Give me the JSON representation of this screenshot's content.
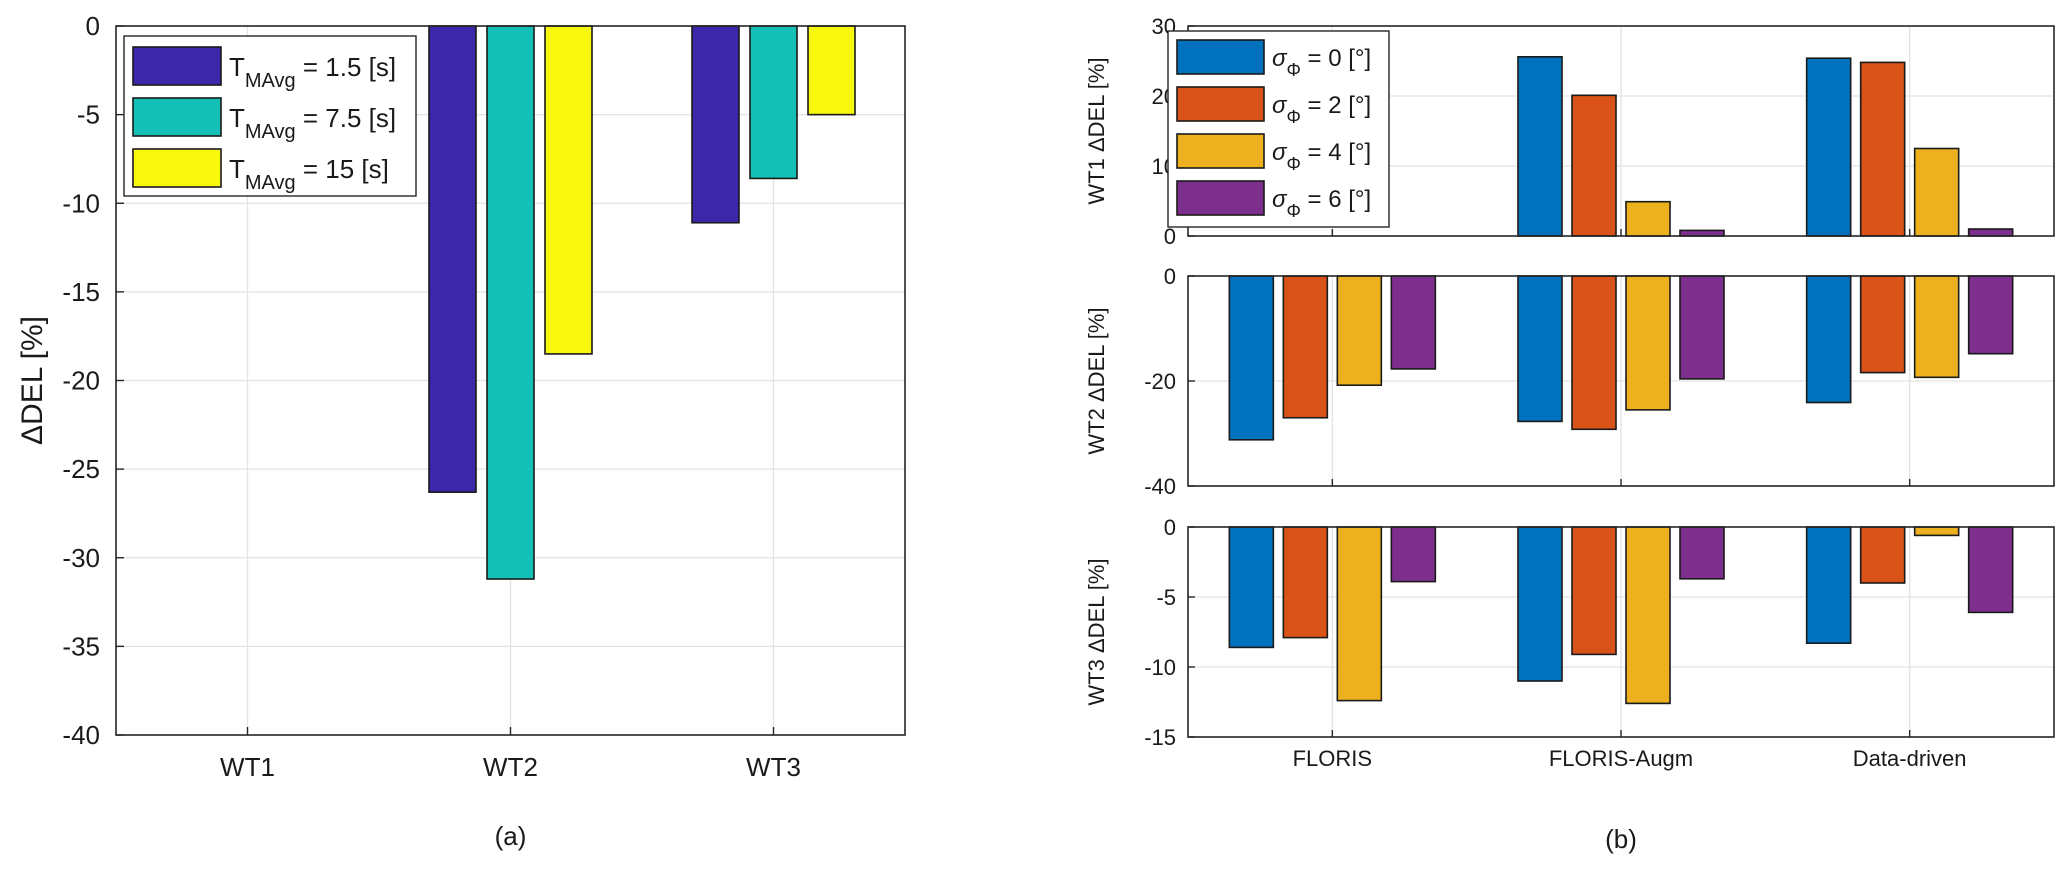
{
  "chart_data": [
    {
      "type": "bar",
      "panel_label": "(a)",
      "categories": [
        "WT1",
        "WT2",
        "WT3"
      ],
      "ylabel": "ΔDEL [%]",
      "ylim": [
        -40,
        0
      ],
      "yticks": [
        0,
        -5,
        -10,
        -15,
        -20,
        -25,
        -30,
        -35,
        -40
      ],
      "grid": true,
      "legend_position": "top-left",
      "series": [
        {
          "name": "T_MAvg = 1.5 [s]",
          "legend_base": "T",
          "legend_sub": "MAvg",
          "legend_rest": " = 1.5 [s]",
          "color": "#3c26aa",
          "values": [
            0,
            -26.3,
            -11.1
          ]
        },
        {
          "name": "T_MAvg = 7.5 [s]",
          "legend_base": "T",
          "legend_sub": "MAvg",
          "legend_rest": " = 7.5 [s]",
          "color": "#14bfb5",
          "values": [
            0,
            -31.2,
            -8.6
          ]
        },
        {
          "name": "T_MAvg = 15 [s]",
          "legend_base": "T",
          "legend_sub": "MAvg",
          "legend_rest": " = 15 [s]",
          "color": "#f8f80e",
          "values": [
            0,
            -18.5,
            -5.0
          ]
        }
      ]
    },
    {
      "type": "bar",
      "panel_label": "(b)",
      "categories": [
        "FLORIS",
        "FLORIS-Augm",
        "Data-driven"
      ],
      "legend_position": "top-left",
      "series": [
        {
          "name": "σΦ = 0 [°]",
          "legend_base": "σ",
          "legend_sub": "Φ",
          "legend_rest": " = 0 [°]",
          "color": "#0072bd"
        },
        {
          "name": "σΦ = 2 [°]",
          "legend_base": "σ",
          "legend_sub": "Φ",
          "legend_rest": " = 2 [°]",
          "color": "#d95319"
        },
        {
          "name": "σΦ = 4 [°]",
          "legend_base": "σ",
          "legend_sub": "Φ",
          "legend_rest": " = 4 [°]",
          "color": "#edb120"
        },
        {
          "name": "σΦ = 6 [°]",
          "legend_base": "σ",
          "legend_sub": "Φ",
          "legend_rest": " = 6 [°]",
          "color": "#7e2f8e"
        }
      ],
      "subplots": [
        {
          "ylabel": "WT1 ΔDEL [%]",
          "ylim": [
            0,
            30
          ],
          "yticks": [
            0,
            10,
            20,
            30
          ],
          "values": [
            [
              0,
              0,
              0,
              0
            ],
            [
              25.6,
              20.1,
              4.9,
              0.8
            ],
            [
              25.4,
              24.8,
              12.5,
              1.0
            ]
          ]
        },
        {
          "ylabel": "WT2 ΔDEL [%]",
          "ylim": [
            -40,
            0
          ],
          "yticks": [
            0,
            -20,
            -40
          ],
          "values": [
            [
              -31.2,
              -27.0,
              -20.8,
              -17.7
            ],
            [
              -27.7,
              -29.2,
              -25.5,
              -19.6
            ],
            [
              -24.1,
              -18.4,
              -19.3,
              -14.8
            ]
          ]
        },
        {
          "ylabel": "WT3 ΔDEL [%]",
          "ylim": [
            -15,
            0
          ],
          "yticks": [
            0,
            -5,
            -10,
            -15
          ],
          "values": [
            [
              -8.6,
              -7.9,
              -12.4,
              -3.9
            ],
            [
              -11.0,
              -9.1,
              -12.6,
              -3.7
            ],
            [
              -8.3,
              -4.0,
              -0.6,
              -6.1
            ]
          ]
        }
      ]
    }
  ]
}
